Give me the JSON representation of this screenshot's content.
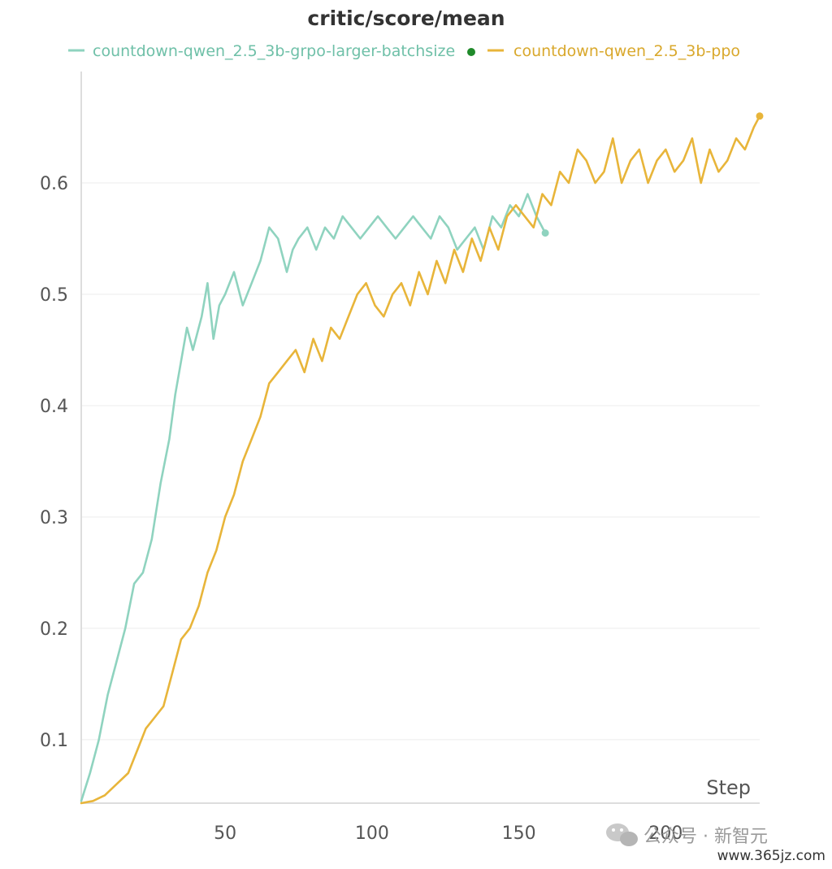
{
  "chart_data": {
    "type": "line",
    "title": "critic/score/mean",
    "xlabel": "Step",
    "ylabel": "",
    "xlim": [
      1,
      232
    ],
    "ylim": [
      0.043,
      0.7
    ],
    "x_ticks": [
      50,
      100,
      150,
      200
    ],
    "y_ticks": [
      0.1,
      0.2,
      0.3,
      0.4,
      0.5,
      0.6
    ],
    "x_tick_labels": [
      "50",
      "100",
      "150",
      "200"
    ],
    "y_tick_labels": [
      "0.1",
      "0.2",
      "0.3",
      "0.4",
      "0.5",
      "0.6"
    ],
    "grid": "horizontal",
    "legend_position": "top",
    "series": [
      {
        "name": "countdown-qwen_2.5_3b-grpo-larger-batchsize",
        "color": "#8fd3bf",
        "legend_marker_color": "#1f8a2a",
        "x": [
          1,
          4,
          7,
          10,
          13,
          16,
          19,
          22,
          25,
          28,
          31,
          33,
          35,
          37,
          39,
          42,
          44,
          46,
          48,
          50,
          53,
          56,
          59,
          62,
          65,
          68,
          71,
          73,
          75,
          78,
          81,
          84,
          87,
          90,
          93,
          96,
          99,
          102,
          105,
          108,
          111,
          114,
          117,
          120,
          123,
          126,
          129,
          132,
          135,
          138,
          141,
          144,
          147,
          150,
          153,
          156,
          159
        ],
        "y": [
          0.045,
          0.07,
          0.1,
          0.14,
          0.17,
          0.2,
          0.24,
          0.25,
          0.28,
          0.33,
          0.37,
          0.41,
          0.44,
          0.47,
          0.45,
          0.48,
          0.51,
          0.46,
          0.49,
          0.5,
          0.52,
          0.49,
          0.51,
          0.53,
          0.56,
          0.55,
          0.52,
          0.54,
          0.55,
          0.56,
          0.54,
          0.56,
          0.55,
          0.57,
          0.56,
          0.55,
          0.56,
          0.57,
          0.56,
          0.55,
          0.56,
          0.57,
          0.56,
          0.55,
          0.57,
          0.56,
          0.54,
          0.55,
          0.56,
          0.54,
          0.57,
          0.56,
          0.58,
          0.57,
          0.59,
          0.57,
          0.555
        ]
      },
      {
        "name": "countdown-qwen_2.5_3b-ppo",
        "color": "#e8b53a",
        "legend_marker_color": "#e8b53a",
        "x": [
          1,
          5,
          9,
          13,
          17,
          20,
          23,
          26,
          29,
          32,
          35,
          38,
          41,
          44,
          47,
          50,
          53,
          56,
          59,
          62,
          65,
          68,
          71,
          74,
          77,
          80,
          83,
          86,
          89,
          92,
          95,
          98,
          101,
          104,
          107,
          110,
          113,
          116,
          119,
          122,
          125,
          128,
          131,
          134,
          137,
          140,
          143,
          146,
          149,
          152,
          155,
          158,
          161,
          164,
          167,
          170,
          173,
          176,
          179,
          182,
          185,
          188,
          191,
          194,
          197,
          200,
          203,
          206,
          209,
          212,
          215,
          218,
          221,
          224,
          227,
          230,
          232
        ],
        "y": [
          0.043,
          0.045,
          0.05,
          0.06,
          0.07,
          0.09,
          0.11,
          0.12,
          0.13,
          0.16,
          0.19,
          0.2,
          0.22,
          0.25,
          0.27,
          0.3,
          0.32,
          0.35,
          0.37,
          0.39,
          0.42,
          0.43,
          0.44,
          0.45,
          0.43,
          0.46,
          0.44,
          0.47,
          0.46,
          0.48,
          0.5,
          0.51,
          0.49,
          0.48,
          0.5,
          0.51,
          0.49,
          0.52,
          0.5,
          0.53,
          0.51,
          0.54,
          0.52,
          0.55,
          0.53,
          0.56,
          0.54,
          0.57,
          0.58,
          0.57,
          0.56,
          0.59,
          0.58,
          0.61,
          0.6,
          0.63,
          0.62,
          0.6,
          0.61,
          0.64,
          0.6,
          0.62,
          0.63,
          0.6,
          0.62,
          0.63,
          0.61,
          0.62,
          0.64,
          0.6,
          0.63,
          0.61,
          0.62,
          0.64,
          0.63,
          0.65,
          0.66
        ]
      }
    ]
  },
  "watermark": {
    "text": "公众号 · 新智元",
    "url": "www.365jz.com"
  }
}
